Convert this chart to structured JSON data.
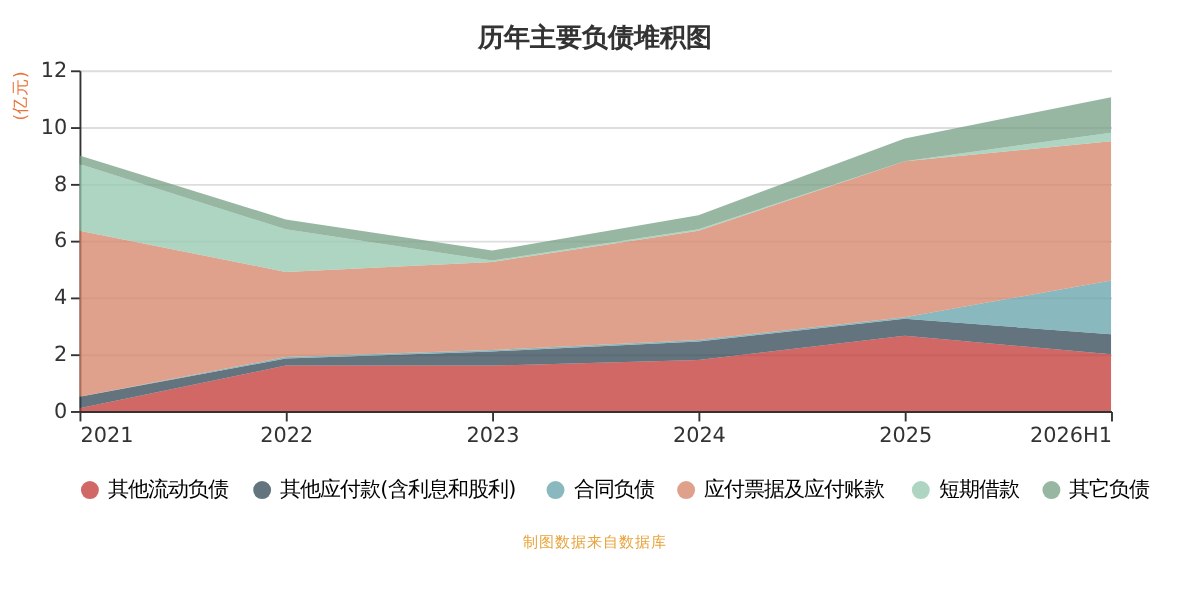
{
  "chart_data": {
    "type": "area",
    "title": "历年主要负债堆积图",
    "ylabel": "(亿元)",
    "categories": [
      "2021",
      "2022",
      "2023",
      "2024",
      "2025",
      "2026H1"
    ],
    "stacked": true,
    "ylim": [
      0,
      12
    ],
    "yticks": [
      0,
      2,
      4,
      6,
      8,
      10,
      12
    ],
    "grid": "y",
    "legend": "bottom",
    "series": [
      {
        "name": "其他流动负债",
        "color": "#c23531",
        "values": [
          0.1,
          1.6,
          1.6,
          1.8,
          2.65,
          2.0
        ]
      },
      {
        "name": "其他应付款(含利息和股利)",
        "color": "#2f4554",
        "values": [
          0.4,
          0.25,
          0.5,
          0.65,
          0.6,
          0.7
        ]
      },
      {
        "name": "合同负债",
        "color": "#61a0a8",
        "values": [
          0,
          0.05,
          0.05,
          0.05,
          0.05,
          1.9
        ]
      },
      {
        "name": "应付票据及应付账款",
        "color": "#d48265",
        "values": [
          5.85,
          3.0,
          3.1,
          3.85,
          5.5,
          4.9
        ]
      },
      {
        "name": "短期借款",
        "color": "#91c7ae",
        "values": [
          2.35,
          1.5,
          0.05,
          0.05,
          0,
          0.3
        ]
      },
      {
        "name": "其它负债",
        "color": "#749f83",
        "values": [
          0.3,
          0.35,
          0.35,
          0.5,
          0.8,
          1.25
        ]
      }
    ],
    "annotations": [
      "制图数据来自数据库"
    ]
  }
}
